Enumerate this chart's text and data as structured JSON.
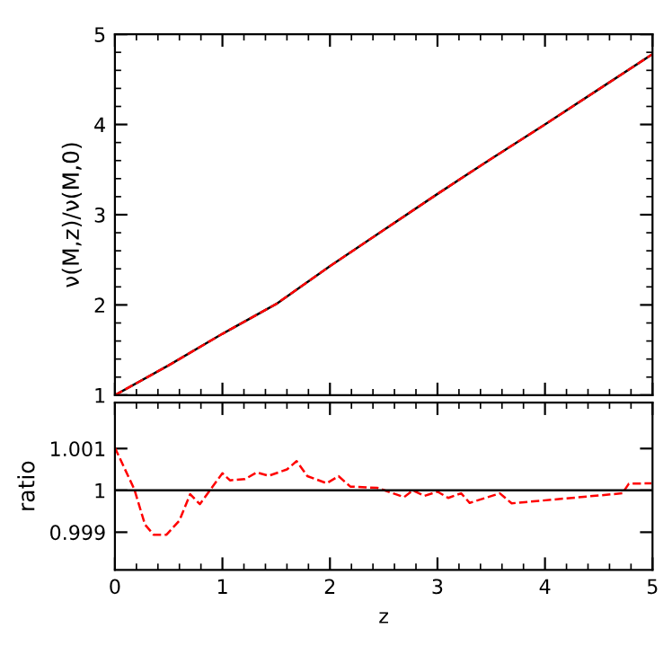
{
  "chart_data": [
    {
      "type": "line",
      "ylabel": "ν(M,z)/ν(M,0)",
      "xlim": [
        0,
        5
      ],
      "ylim": [
        1,
        5
      ],
      "xticks": [
        0,
        1,
        2,
        3,
        4,
        5
      ],
      "yticks": [
        1,
        2,
        3,
        4,
        5
      ],
      "tick_labels": "y",
      "grid": false,
      "legend": false,
      "x": [
        0,
        0.5,
        1,
        1.5,
        2,
        2.5,
        3,
        3.5,
        4,
        4.5,
        5
      ],
      "series": [
        {
          "color": "#000000",
          "line_style": "solid",
          "values": [
            1,
            1.33,
            1.68,
            2.01,
            2.43,
            2.83,
            3.23,
            3.62,
            4.0,
            4.39,
            4.78
          ]
        },
        {
          "color": "#ff0000",
          "line_style": "dashed",
          "values": [
            1,
            1.33,
            1.68,
            2.01,
            2.43,
            2.83,
            3.23,
            3.62,
            4.0,
            4.39,
            4.78
          ]
        }
      ]
    },
    {
      "type": "line",
      "xlabel": "z",
      "ylabel": "ratio",
      "xlim": [
        0,
        5
      ],
      "ylim": [
        0.9981,
        1.0021
      ],
      "xticks": [
        0,
        1,
        2,
        3,
        4,
        5
      ],
      "yticks": [
        0.999,
        1,
        1.001
      ],
      "grid": false,
      "legend": false,
      "ref_lines": [
        {
          "axis": "y",
          "value": 1,
          "color": "#000000",
          "line_style": "solid"
        }
      ],
      "x": [
        0,
        0.18,
        0.28,
        0.36,
        0.48,
        0.6,
        0.7,
        0.79,
        1.0,
        1.07,
        1.21,
        1.32,
        1.43,
        1.6,
        1.69,
        1.79,
        1.97,
        2.08,
        2.19,
        2.44,
        2.69,
        2.77,
        2.88,
        3.0,
        3.1,
        3.22,
        3.3,
        3.58,
        3.69,
        4.72,
        4.78,
        4.99
      ],
      "series": [
        {
          "color": "#ff0000",
          "line_style": "dashed",
          "values": [
            1.00102,
            1.00003,
            0.99918,
            0.99894,
            0.99894,
            0.99928,
            0.99991,
            0.99967,
            1.00041,
            1.00024,
            1.00027,
            1.00043,
            1.00035,
            1.0005,
            1.0007,
            1.00034,
            1.00017,
            1.00034,
            1.00009,
            1.00006,
            0.99984,
            1.0,
            0.99987,
            0.99997,
            0.99982,
            0.99993,
            0.9997,
            0.99993,
            0.99969,
            0.99993,
            1.00016,
            1.00017
          ]
        }
      ]
    }
  ]
}
